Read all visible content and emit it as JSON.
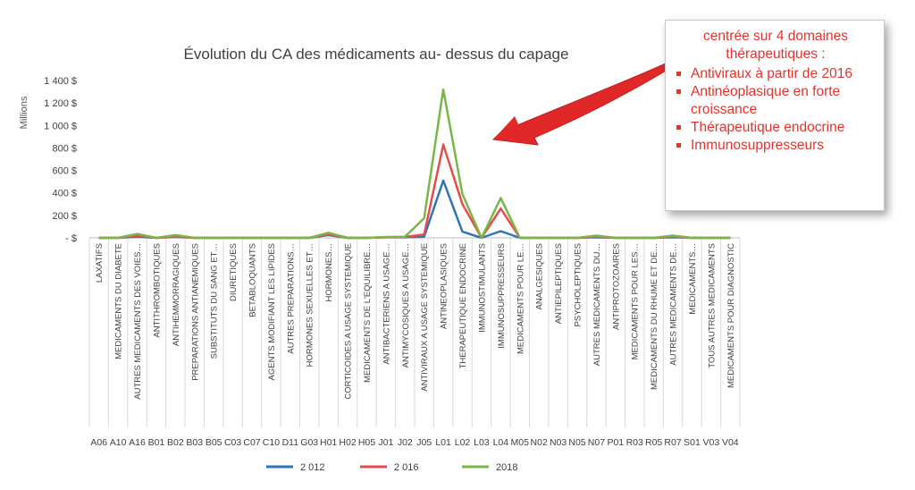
{
  "chart_data": {
    "type": "line",
    "title": "Évolution du CA des médicaments au- dessus du capage",
    "ylabel": "Millions",
    "ylim": [
      0,
      1400
    ],
    "yticks": [
      0,
      200,
      400,
      600,
      800,
      1000,
      1200,
      1400
    ],
    "ytick_labels": [
      "-   $",
      "200 $",
      "400 $",
      "600 $",
      "800 $",
      "1 000 $",
      "1 200 $",
      "1 400 $"
    ],
    "legend_position": "bottom",
    "grid": "vertical",
    "categories": [
      {
        "name": "LAXATIFS",
        "code": "A06"
      },
      {
        "name": "MEDICAMENTS DU DIABETE",
        "code": "A10"
      },
      {
        "name": "AUTRES MEDICAMENTS DES VOIES…",
        "code": "A16"
      },
      {
        "name": "ANTITHROMBOTIQUES",
        "code": "B01"
      },
      {
        "name": "ANTIHEMMORRAGIQUES",
        "code": "B02"
      },
      {
        "name": "PREPARATIONS ANTIANEMIQUES",
        "code": "B03"
      },
      {
        "name": "SUBSTITUTS DU SANG ET…",
        "code": "B05"
      },
      {
        "name": "DIURETIQUES",
        "code": "C03"
      },
      {
        "name": "BETABLOQUANTS",
        "code": "C07"
      },
      {
        "name": "AGENTS MODIFIANT LES LIPIDES",
        "code": "C10"
      },
      {
        "name": "AUTRES PREPARATIONS…",
        "code": "D11"
      },
      {
        "name": "HORMONES SEXUELLES ET…",
        "code": "G03"
      },
      {
        "name": "HORMONES…",
        "code": "H01"
      },
      {
        "name": "CORTICOIDES A USAGE SYSTEMIQUE",
        "code": "H02"
      },
      {
        "name": "MEDICAMENTS DE L'EQUILIBRE…",
        "code": "H05"
      },
      {
        "name": "ANTIBACTERIENS A USAGE…",
        "code": "J01"
      },
      {
        "name": "ANTIMYCOSIQUES A USAGE…",
        "code": "J02"
      },
      {
        "name": "ANTIVIRAUX A USAGE SYSTEMIQUE",
        "code": "J05"
      },
      {
        "name": "ANTINEOPLASIQUES",
        "code": "L01"
      },
      {
        "name": "THERAPEUTIQUE ENDOCRINE",
        "code": "L02"
      },
      {
        "name": "IMMUNOSTIMULANTS",
        "code": "L03"
      },
      {
        "name": "IMMUNOSUPPRESSEURS",
        "code": "L04"
      },
      {
        "name": "MEDICAMENTS POUR LE…",
        "code": "M05"
      },
      {
        "name": "ANALGESIQUES",
        "code": "N02"
      },
      {
        "name": "ANTIEPILEPTIQUES",
        "code": "N03"
      },
      {
        "name": "PSYCHOLEPTIQUES",
        "code": "N05"
      },
      {
        "name": "AUTRES MEDICAMENTS DU…",
        "code": "N07"
      },
      {
        "name": "ANTIPROTOZOAIRES",
        "code": "P01"
      },
      {
        "name": "MEDICAMENTS POUR LES…",
        "code": "R03"
      },
      {
        "name": "MEDICAMENTS DU RHUME ET DE…",
        "code": "R05"
      },
      {
        "name": "AUTRES MEDICAMENTS DE…",
        "code": "R07"
      },
      {
        "name": "MEDICAMENTS…",
        "code": "S01"
      },
      {
        "name": "TOUS AUTRES MEDICAMENTS",
        "code": "V03"
      },
      {
        "name": "MEDICAMENTS POUR DIAGNOSTIC",
        "code": "V04"
      }
    ],
    "series": [
      {
        "name": "2 012",
        "color": "#2e75b6",
        "values": [
          0,
          0,
          10,
          0,
          8,
          0,
          0,
          0,
          0,
          0,
          0,
          0,
          25,
          0,
          0,
          5,
          5,
          10,
          510,
          55,
          0,
          60,
          0,
          0,
          0,
          0,
          5,
          0,
          0,
          0,
          5,
          0,
          0,
          0
        ]
      },
      {
        "name": "2 016",
        "color": "#e84c4c",
        "values": [
          0,
          0,
          20,
          0,
          10,
          0,
          0,
          0,
          0,
          0,
          0,
          0,
          30,
          0,
          0,
          5,
          8,
          30,
          830,
          300,
          0,
          260,
          0,
          0,
          0,
          0,
          10,
          0,
          0,
          0,
          10,
          0,
          0,
          0
        ]
      },
      {
        "name": "2018",
        "color": "#7ab648",
        "values": [
          0,
          0,
          35,
          0,
          25,
          0,
          0,
          0,
          0,
          0,
          0,
          0,
          45,
          0,
          0,
          8,
          10,
          175,
          1320,
          390,
          0,
          355,
          0,
          0,
          0,
          0,
          20,
          0,
          0,
          0,
          20,
          0,
          0,
          0
        ]
      }
    ]
  },
  "callout": {
    "heading": "centrée sur 4 domaines thérapeutiques :",
    "items": [
      "Antiviraux à partir de 2016",
      "Antinéoplasique en forte croissance",
      "Thérapeutique endocrine",
      "Immunosuppresseurs"
    ],
    "color": "#e8312a"
  }
}
